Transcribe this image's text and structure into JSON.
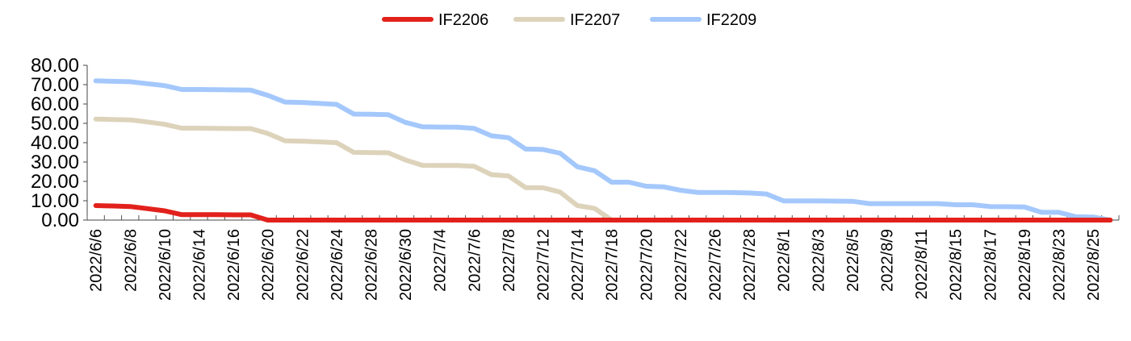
{
  "chart_data": {
    "type": "line",
    "title": "",
    "xlabel": "",
    "ylabel": "",
    "ylim": [
      0,
      80
    ],
    "y_ticks": [
      "0.00",
      "10.00",
      "20.00",
      "30.00",
      "40.00",
      "50.00",
      "60.00",
      "70.00",
      "80.00"
    ],
    "x_tick_labels": [
      "2022/6/6",
      "2022/6/8",
      "2022/6/10",
      "2022/6/14",
      "2022/6/16",
      "2022/6/20",
      "2022/6/22",
      "2022/6/24",
      "2022/6/28",
      "2022/6/30",
      "2022/7/4",
      "2022/7/6",
      "2022/7/8",
      "2022/7/12",
      "2022/7/14",
      "2022/7/18",
      "2022/7/20",
      "2022/7/22",
      "2022/7/26",
      "2022/7/28",
      "2022/8/1",
      "2022/8/3",
      "2022/8/5",
      "2022/8/9",
      "2022/8/11",
      "2022/8/15",
      "2022/8/17",
      "2022/8/19",
      "2022/8/23",
      "2022/8/25"
    ],
    "points_per_label": 2,
    "grid": false,
    "legend_position": "top-center",
    "series": [
      {
        "name": "IF2206",
        "color": "#e2211c",
        "values": [
          7.5,
          7.3,
          7.0,
          5.9,
          4.8,
          2.8,
          2.8,
          2.8,
          2.7,
          2.7,
          0,
          0,
          0,
          0,
          0,
          0,
          0,
          0,
          0,
          0,
          0,
          0,
          0,
          0,
          0,
          0,
          0,
          0,
          0,
          0,
          0,
          0,
          0,
          0,
          0,
          0,
          0,
          0,
          0,
          0,
          0,
          0,
          0,
          0,
          0,
          0,
          0,
          0,
          0,
          0,
          0,
          0,
          0,
          0,
          0,
          0,
          0,
          0,
          0,
          0
        ]
      },
      {
        "name": "IF2207",
        "color": "#ddd3bb",
        "values": [
          52.2,
          52.0,
          51.8,
          50.7,
          49.5,
          47.5,
          47.5,
          47.4,
          47.3,
          47.3,
          44.8,
          41.0,
          40.8,
          40.4,
          40.0,
          35.0,
          34.9,
          34.8,
          31.1,
          28.3,
          28.2,
          28.2,
          27.8,
          23.5,
          22.8,
          16.8,
          16.7,
          14.5,
          7.5,
          6.1,
          0,
          0,
          0,
          0,
          0,
          0,
          0,
          0,
          0,
          0,
          0,
          0,
          0,
          0,
          0,
          0,
          0,
          0,
          0,
          0,
          0,
          0,
          0,
          0,
          0,
          0,
          0,
          0,
          0,
          0
        ]
      },
      {
        "name": "IF2209",
        "color": "#a4c8fc",
        "values": [
          72.0,
          71.7,
          71.5,
          70.5,
          69.5,
          67.5,
          67.5,
          67.4,
          67.3,
          67.2,
          64.5,
          61.0,
          60.8,
          60.3,
          59.8,
          54.8,
          54.7,
          54.5,
          50.5,
          48.2,
          48.1,
          48.0,
          47.4,
          43.6,
          42.6,
          36.7,
          36.5,
          34.6,
          27.6,
          25.5,
          19.6,
          19.6,
          17.5,
          17.2,
          15.4,
          14.3,
          14.3,
          14.2,
          14.0,
          13.5,
          9.9,
          9.9,
          9.9,
          9.8,
          9.7,
          8.5,
          8.5,
          8.5,
          8.5,
          8.5,
          7.9,
          7.9,
          7.0,
          6.9,
          6.8,
          4.0,
          4.0,
          1.7,
          1.6,
          0
        ]
      }
    ]
  }
}
